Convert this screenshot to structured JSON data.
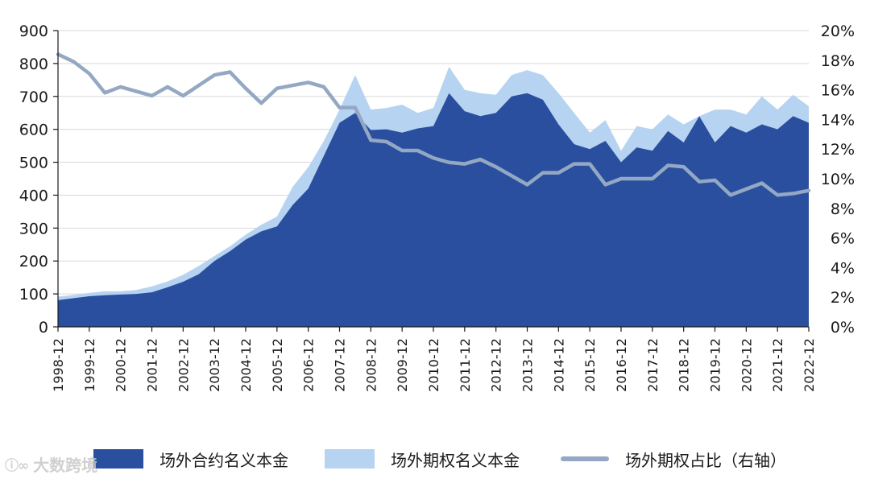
{
  "chart_data": {
    "type": "area",
    "x": [
      "1998-12",
      "1999-06",
      "1999-12",
      "2000-06",
      "2000-12",
      "2001-06",
      "2001-12",
      "2002-06",
      "2002-12",
      "2003-06",
      "2003-12",
      "2004-06",
      "2004-12",
      "2005-06",
      "2005-12",
      "2006-06",
      "2006-12",
      "2007-06",
      "2007-12",
      "2008-06",
      "2008-12",
      "2009-06",
      "2009-12",
      "2010-06",
      "2010-12",
      "2011-06",
      "2011-12",
      "2012-06",
      "2012-12",
      "2013-06",
      "2013-12",
      "2014-06",
      "2014-12",
      "2015-06",
      "2015-12",
      "2016-06",
      "2016-12",
      "2017-06",
      "2017-12",
      "2018-06",
      "2018-12",
      "2019-06",
      "2019-12",
      "2020-06",
      "2020-12",
      "2021-06",
      "2021-12",
      "2022-06",
      "2022-12"
    ],
    "x_tick_labels": [
      "1998-12",
      "1999-12",
      "2000-12",
      "2001-12",
      "2002-12",
      "2003-12",
      "2004-12",
      "2005-12",
      "2006-12",
      "2007-12",
      "2008-12",
      "2009-12",
      "2010-12",
      "2011-12",
      "2012-12",
      "2013-12",
      "2014-12",
      "2015-12",
      "2016-12",
      "2017-12",
      "2018-12",
      "2019-12",
      "2020-12",
      "2021-12",
      "2022-12"
    ],
    "y_left": {
      "min": 0,
      "max": 900,
      "ticks": [
        0,
        100,
        200,
        300,
        400,
        500,
        600,
        700,
        800,
        900
      ]
    },
    "y_right": {
      "min": 0,
      "max": 20,
      "unit": "%",
      "ticks": [
        0,
        2,
        4,
        6,
        8,
        10,
        12,
        14,
        16,
        18,
        20
      ]
    },
    "series": [
      {
        "name": "场外合约名义本金",
        "kind": "area",
        "axis": "left",
        "color": "#2a4f9f",
        "values": [
          81,
          87,
          93,
          96,
          98,
          100,
          105,
          120,
          137,
          160,
          200,
          230,
          265,
          290,
          305,
          370,
          420,
          520,
          620,
          650,
          598,
          600,
          590,
          603,
          610,
          710,
          655,
          640,
          650,
          700,
          710,
          690,
          615,
          555,
          540,
          565,
          500,
          545,
          535,
          595,
          560,
          640,
          560,
          610,
          590,
          615,
          600,
          640,
          620
        ]
      },
      {
        "name": "场外期权名义本金",
        "kind": "area",
        "axis": "left",
        "color": "#b6d3f1",
        "values": [
          92,
          97,
          103,
          108,
          108,
          112,
          123,
          138,
          158,
          185,
          215,
          245,
          280,
          310,
          335,
          425,
          485,
          565,
          660,
          765,
          660,
          665,
          675,
          650,
          665,
          790,
          720,
          710,
          705,
          765,
          780,
          765,
          710,
          650,
          590,
          628,
          535,
          610,
          600,
          645,
          615,
          640,
          660,
          660,
          645,
          700,
          660,
          705,
          670
        ]
      },
      {
        "name": "场外期权占比（右轴）",
        "kind": "line",
        "axis": "right",
        "color": "#94a8c4",
        "values": [
          18.4,
          17.9,
          17.1,
          15.8,
          16.2,
          15.9,
          15.6,
          16.2,
          15.6,
          16.3,
          17.0,
          17.2,
          16.1,
          15.1,
          16.1,
          16.3,
          16.5,
          16.2,
          14.8,
          14.8,
          12.6,
          12.5,
          11.9,
          11.9,
          11.4,
          11.1,
          11.0,
          11.3,
          10.8,
          10.2,
          9.6,
          10.4,
          10.4,
          11.0,
          11.0,
          9.6,
          10.0,
          10.0,
          10.0,
          10.9,
          10.8,
          9.8,
          9.9,
          8.9,
          9.3,
          9.7,
          8.9,
          9.0,
          9.2
        ]
      }
    ]
  },
  "legend": {
    "item1": "场外合约名义本金",
    "item2": "场外期权名义本金",
    "item3": "场外期权占比（右轴）"
  },
  "watermark": {
    "text": "大数跨境"
  }
}
